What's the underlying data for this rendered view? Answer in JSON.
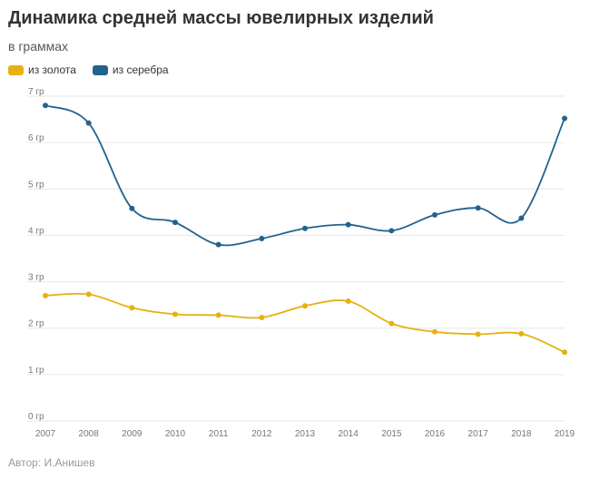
{
  "header": {
    "title": "Динамика средней массы ювелирных изделий",
    "subtitle": "в граммах"
  },
  "footer": {
    "source": "Автор: И.Анишев"
  },
  "colors": {
    "gold": "#e6b10e",
    "silver": "#23628f",
    "grid": "#e6e6e6",
    "tick": "#777777"
  },
  "chart_data": {
    "type": "line",
    "title": "Динамика средней массы ювелирных изделий",
    "subtitle": "в граммах",
    "xlabel": "",
    "ylabel": "",
    "x": [
      "2007",
      "2008",
      "2009",
      "2010",
      "2011",
      "2012",
      "2013",
      "2014",
      "2015",
      "2016",
      "2017",
      "2018",
      "2019"
    ],
    "ylim": [
      0,
      7
    ],
    "yticks": [
      0,
      1,
      2,
      3,
      4,
      5,
      6,
      7
    ],
    "ytick_labels": [
      "0 гр",
      "1 гр",
      "2 гр",
      "3 гр",
      "4 гр",
      "5 гр",
      "6 гр",
      "7 гр"
    ],
    "grid": true,
    "legend_position": "top-left",
    "series": [
      {
        "name": "из золота",
        "color": "#e6b10e",
        "values": [
          2.7,
          2.73,
          2.44,
          2.3,
          2.28,
          2.23,
          2.48,
          2.58,
          2.1,
          1.92,
          1.87,
          1.88,
          1.48
        ]
      },
      {
        "name": "из серебра",
        "color": "#23628f",
        "values": [
          6.8,
          6.42,
          4.58,
          4.28,
          3.8,
          3.93,
          4.15,
          4.23,
          4.1,
          4.44,
          4.59,
          4.37,
          6.52
        ]
      }
    ]
  }
}
